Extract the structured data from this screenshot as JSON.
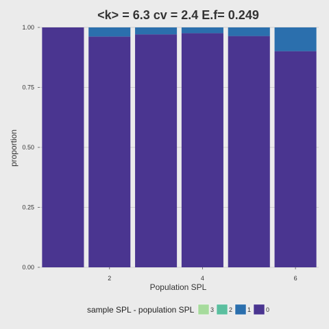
{
  "chart_data": {
    "type": "bar",
    "stacked": true,
    "position": "fill",
    "title": "<k> = 6.3 cv = 2.4 E.f= 0.249",
    "xlabel": "Population SPL",
    "ylabel": "proportion",
    "x": [
      1,
      2,
      3,
      4,
      5,
      6
    ],
    "x_ticks": [
      2,
      4,
      6
    ],
    "xlim": [
      0.5,
      6.5
    ],
    "ylim": [
      0,
      1
    ],
    "y_ticks": [
      0,
      0.25,
      0.5,
      0.75,
      1
    ],
    "y_tick_labels": [
      "0.00",
      "0.25",
      "0.50",
      "0.75",
      "1.00"
    ],
    "grid": true,
    "legend": {
      "title": "sample SPL - population SPL",
      "position": "bottom",
      "labels": [
        "3",
        "2",
        "1",
        "0"
      ]
    },
    "series": [
      {
        "name": "0",
        "color": "#4a3590",
        "values": [
          1.0,
          0.962,
          0.971,
          0.976,
          0.964,
          0.901
        ]
      },
      {
        "name": "1",
        "color": "#2b6fad",
        "values": [
          0.0,
          0.038,
          0.029,
          0.024,
          0.036,
          0.099
        ]
      },
      {
        "name": "2",
        "color": "#5bbf9f",
        "values": [
          0,
          0,
          0,
          0,
          0,
          0
        ]
      },
      {
        "name": "3",
        "color": "#a6db9c",
        "values": [
          0,
          0,
          0,
          0,
          0,
          0
        ]
      }
    ]
  }
}
